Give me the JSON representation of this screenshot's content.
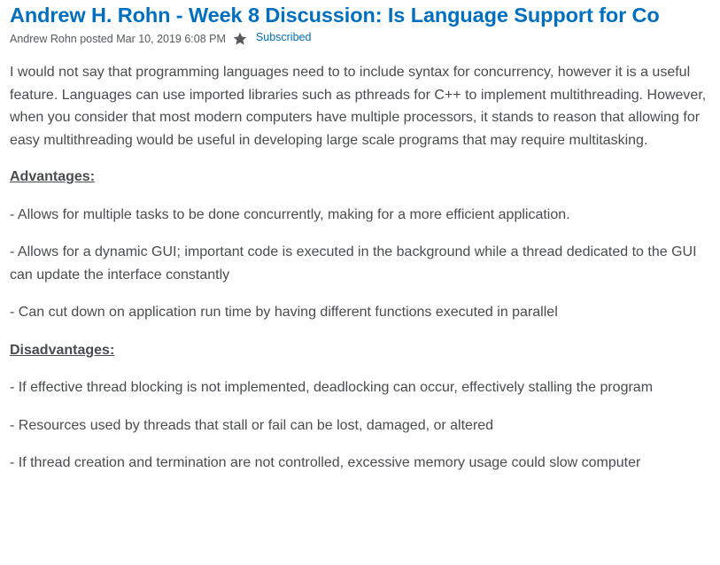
{
  "post": {
    "title": "Andrew H. Rohn - Week 8 Discussion: Is Language Support for Co",
    "meta": {
      "posted_text": "Andrew Rohn posted Mar 10, 2019 6:08 PM",
      "star_icon": "star-icon",
      "subscribed_label": "Subscribed"
    },
    "intro": "I would not say that programming languages need to to include syntax for concurrency, however it is a useful feature. Languages can use imported libraries such as pthreads for C++ to implement multithreading. However, when you consider that most modern computers have multiple processors, it stands to reason that allowing for easy multithreading would be useful in developing large scale programs that may require multitasking.",
    "advantages": {
      "heading": "Advantages:",
      "items": [
        "- Allows for multiple tasks to be done concurrently, making for a more efficient application.",
        "- Allows for a dynamic GUI; important code is executed in the background while a thread dedicated to the GUI can update the interface constantly",
        "- Can cut down on application run time by having different functions executed in parallel"
      ]
    },
    "disadvantages": {
      "heading": "Disadvantages:",
      "items": [
        "- If effective thread blocking is not implemented, deadlocking can occur, effectively stalling the program",
        "- Resources used by threads that stall or fail can be lost, damaged, or altered",
        "- If thread creation and termination are not controlled, excessive memory usage could slow computer"
      ]
    }
  },
  "colors": {
    "title": "#006fbf",
    "link": "#006fbf",
    "text": "#494c4e",
    "star": "#565a5c"
  }
}
